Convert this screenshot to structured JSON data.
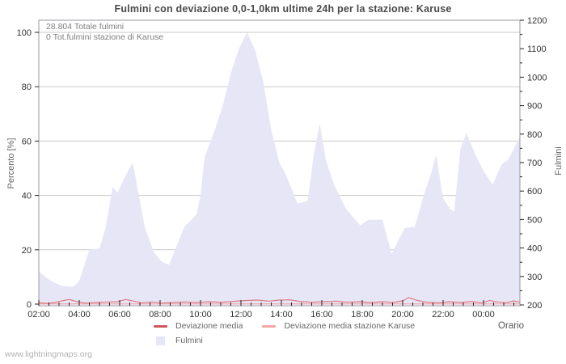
{
  "title": "Fulmini con deviazione 0,0-1,0km ultime 24h per la stazione: Karuse",
  "annotations": {
    "total": "28.804 Totale fulmini",
    "station": "0 Tot.fulmini stazione di Karuse"
  },
  "axes": {
    "left_title": "Percento   [%]",
    "right_title": "Fulmini",
    "x_title": "Orario"
  },
  "legend": {
    "items": [
      {
        "label": "Deviazione media",
        "type": "line",
        "color": "#d0565e"
      },
      {
        "label": "Deviazione media stazione Karuse",
        "type": "line",
        "color": "#f4a6a6"
      },
      {
        "label": "Fulmini",
        "type": "area",
        "color": "#e6e6f7"
      }
    ]
  },
  "watermark": "www.lightningmaps.org",
  "chart_data": {
    "type": "area",
    "title": "Fulmini con deviazione 0,0-1,0km ultime 24h per la stazione: Karuse",
    "xlabel": "Orario",
    "ylabel_left": "Percento [%]",
    "ylabel_right": "Fulmini",
    "ylim_left": [
      0,
      100
    ],
    "ylim_right": [
      200,
      1200
    ],
    "x_hours_start": 2,
    "x_hours_end": 25.8,
    "grid_percents": [
      20,
      40,
      60,
      80,
      100
    ],
    "x_tick_labels": [
      "02:00",
      "04:00",
      "06:00",
      "08:00",
      "10:00",
      "12:00",
      "14:00",
      "16:00",
      "18:00",
      "20:00",
      "22:00",
      "00:00"
    ],
    "y_left_tick_labels": [
      "0",
      "20",
      "40",
      "60",
      "80",
      "100"
    ],
    "y_right_tick_labels": [
      "200",
      "300",
      "400",
      "500",
      "600",
      "700",
      "800",
      "900",
      "1000",
      "1100",
      "1200"
    ],
    "colors": {
      "area": "#e6e6f7",
      "deviation": "#d0565e",
      "deviation_plot": "#dd7d84",
      "station": "#f4a6a6",
      "grid": "#c9c9c9",
      "frame": "#9a9aa0",
      "tick": "#222222",
      "tick_text": "#333333"
    },
    "series": [
      {
        "name": "Fulmini",
        "kind": "area-percent",
        "points": [
          [
            2.0,
            12
          ],
          [
            2.5,
            9
          ],
          [
            3.1,
            6.8
          ],
          [
            3.7,
            6.3
          ],
          [
            4.0,
            8.5
          ],
          [
            4.5,
            20
          ],
          [
            5.0,
            20.5
          ],
          [
            5.3,
            28
          ],
          [
            5.65,
            43
          ],
          [
            5.9,
            41
          ],
          [
            6.2,
            46
          ],
          [
            6.65,
            52
          ],
          [
            7.0,
            38
          ],
          [
            7.25,
            28
          ],
          [
            7.7,
            19
          ],
          [
            8.1,
            15.5
          ],
          [
            8.45,
            14.5
          ],
          [
            9.2,
            28.5
          ],
          [
            9.55,
            31
          ],
          [
            9.8,
            33
          ],
          [
            10.0,
            40
          ],
          [
            10.2,
            54
          ],
          [
            10.45,
            59
          ],
          [
            10.7,
            64
          ],
          [
            11.1,
            73
          ],
          [
            11.5,
            85
          ],
          [
            11.9,
            94
          ],
          [
            12.3,
            100
          ],
          [
            12.7,
            93.5
          ],
          [
            13.1,
            82
          ],
          [
            13.5,
            64
          ],
          [
            13.9,
            52
          ],
          [
            14.2,
            48
          ],
          [
            14.8,
            37
          ],
          [
            15.3,
            38
          ],
          [
            15.6,
            55
          ],
          [
            15.9,
            66.5
          ],
          [
            16.2,
            53
          ],
          [
            16.6,
            44
          ],
          [
            17.2,
            35
          ],
          [
            17.9,
            29
          ],
          [
            18.3,
            31
          ],
          [
            19.0,
            31
          ],
          [
            19.45,
            18.5
          ],
          [
            20.1,
            28
          ],
          [
            20.6,
            28.5
          ],
          [
            21.0,
            39
          ],
          [
            21.4,
            48
          ],
          [
            21.65,
            55
          ],
          [
            22.0,
            39
          ],
          [
            22.35,
            35
          ],
          [
            22.55,
            34
          ],
          [
            22.85,
            57
          ],
          [
            23.15,
            63
          ],
          [
            23.6,
            55
          ],
          [
            24.0,
            49
          ],
          [
            24.45,
            44
          ],
          [
            24.9,
            51.5
          ],
          [
            25.2,
            53
          ],
          [
            25.5,
            57
          ],
          [
            25.8,
            62
          ]
        ]
      },
      {
        "name": "Deviazione media",
        "kind": "line-percent",
        "points": [
          [
            2.0,
            0.5
          ],
          [
            2.4,
            0.3
          ],
          [
            2.8,
            0.6
          ],
          [
            3.2,
            1.3
          ],
          [
            3.5,
            1.7
          ],
          [
            3.9,
            0.9
          ],
          [
            4.3,
            0.4
          ],
          [
            4.8,
            0.6
          ],
          [
            5.4,
            0.8
          ],
          [
            5.9,
            0.9
          ],
          [
            6.3,
            1.7
          ],
          [
            6.7,
            1.1
          ],
          [
            7.1,
            0.5
          ],
          [
            7.6,
            0.8
          ],
          [
            8.1,
            0.4
          ],
          [
            8.6,
            0.6
          ],
          [
            9.2,
            0.8
          ],
          [
            9.8,
            0.6
          ],
          [
            10.4,
            0.9
          ],
          [
            11.0,
            0.7
          ],
          [
            11.6,
            1.0
          ],
          [
            12.2,
            1.3
          ],
          [
            12.8,
            1.5
          ],
          [
            13.4,
            1.1
          ],
          [
            13.9,
            1.5
          ],
          [
            14.4,
            1.6
          ],
          [
            14.9,
            1.0
          ],
          [
            15.5,
            0.7
          ],
          [
            16.1,
            0.9
          ],
          [
            16.7,
            1.1
          ],
          [
            17.3,
            0.7
          ],
          [
            17.9,
            0.9
          ],
          [
            18.4,
            0.6
          ],
          [
            19.0,
            0.9
          ],
          [
            19.5,
            0.6
          ],
          [
            20.0,
            1.2
          ],
          [
            20.3,
            2.4
          ],
          [
            20.7,
            1.4
          ],
          [
            21.2,
            0.7
          ],
          [
            21.8,
            0.5
          ],
          [
            22.3,
            0.9
          ],
          [
            22.9,
            0.6
          ],
          [
            23.4,
            1.0
          ],
          [
            23.9,
            0.5
          ],
          [
            24.3,
            1.3
          ],
          [
            24.7,
            0.8
          ],
          [
            25.1,
            0.5
          ],
          [
            25.5,
            1.2
          ],
          [
            25.8,
            0.7
          ]
        ]
      },
      {
        "name": "Deviazione media stazione Karuse",
        "kind": "line-percent",
        "points": [
          [
            2.0,
            0.1
          ],
          [
            25.8,
            0.1
          ]
        ]
      }
    ]
  }
}
